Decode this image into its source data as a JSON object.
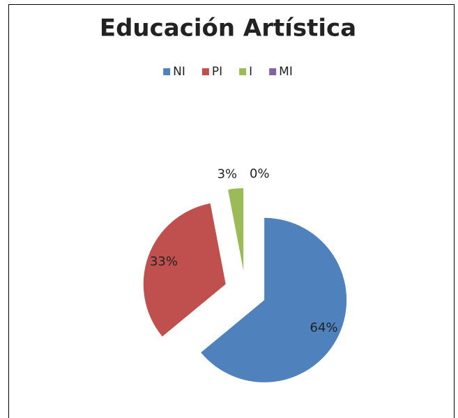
{
  "chart_data": {
    "type": "pie",
    "title": "Educación Artística",
    "categories": [
      "NI",
      "PI",
      "I",
      "MI"
    ],
    "values": [
      64,
      33,
      3,
      0
    ],
    "value_labels": [
      "64%",
      "33%",
      "3%",
      "0%"
    ],
    "colors": [
      "#4f81bd",
      "#c0504d",
      "#9bbb59",
      "#8064a2"
    ],
    "legend": "top"
  }
}
